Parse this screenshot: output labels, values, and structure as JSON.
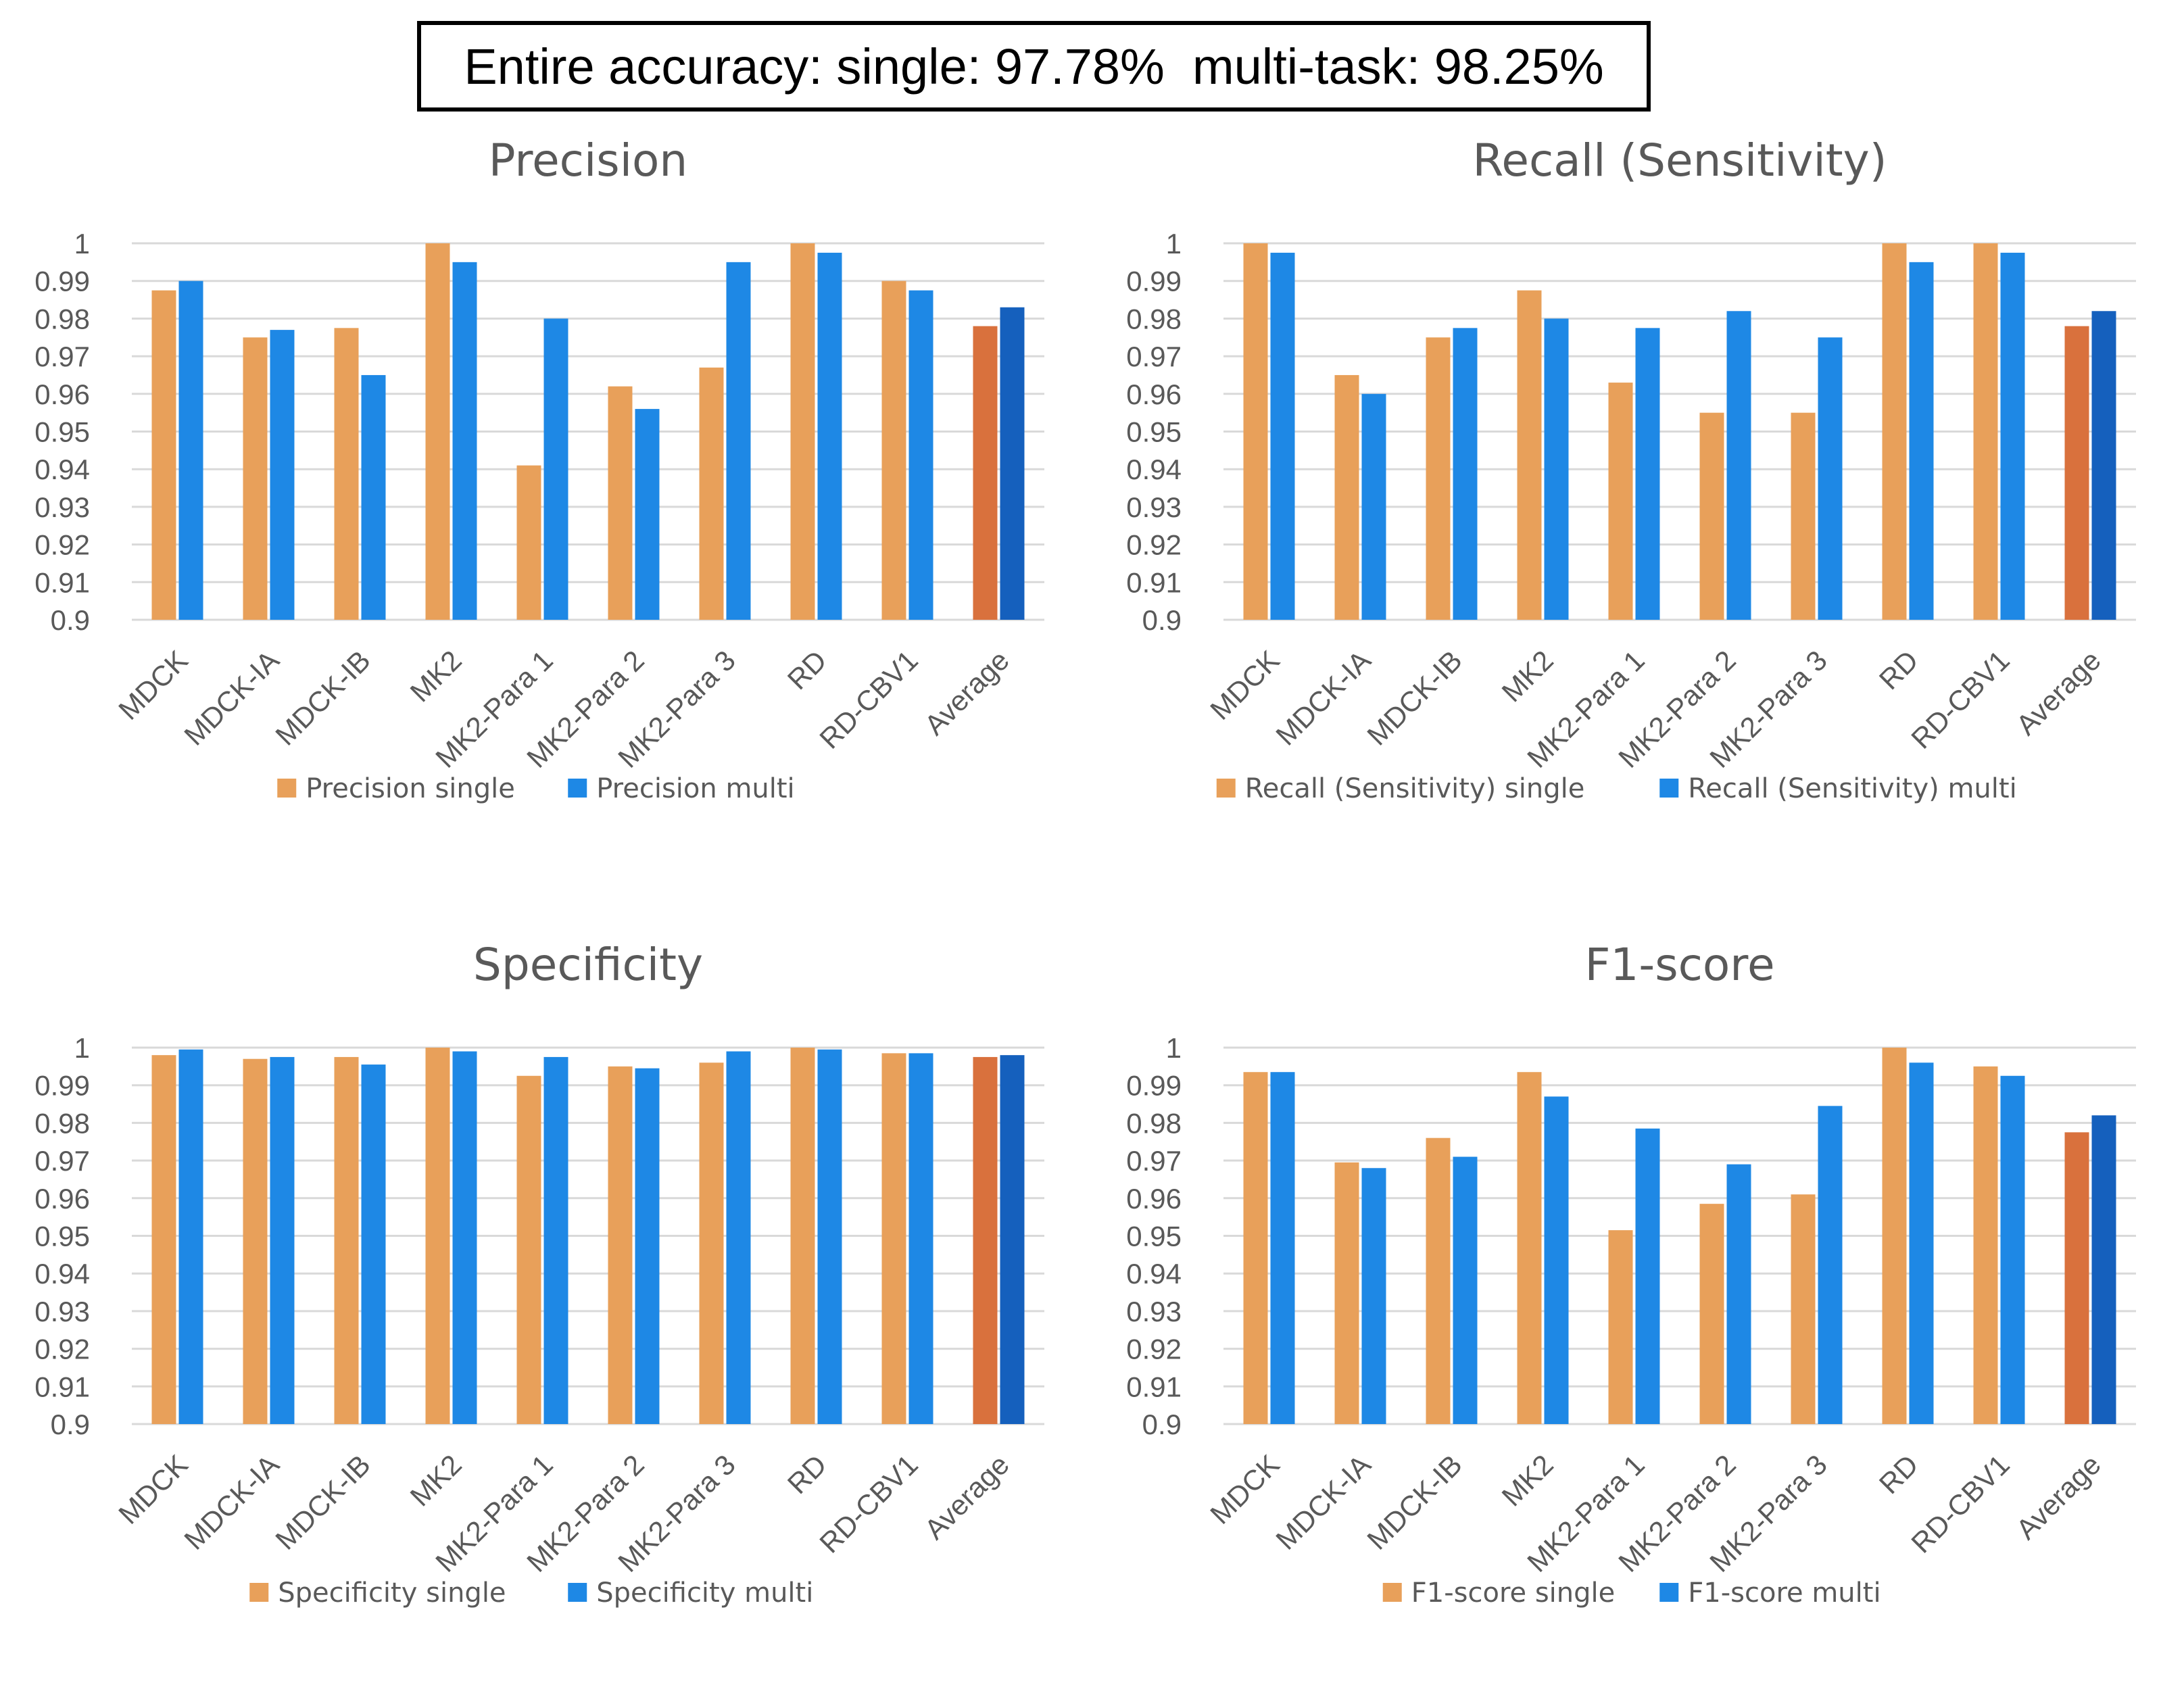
{
  "header": {
    "text": "Entire accuracy: single: 97.78%  multi-task: 98.25%"
  },
  "colors": {
    "single": "#E8A05A",
    "multi": "#1E88E5",
    "single_avg": "#D9713D",
    "multi_avg": "#1560BD",
    "axis_text": "#595959",
    "grid": "#D9D9D9"
  },
  "chart_data": [
    {
      "id": "precision",
      "type": "bar",
      "title": "Precision",
      "categories": [
        "MDCK",
        "MDCK-IA",
        "MDCK-IB",
        "MK2",
        "MK2-Para 1",
        "MK2-Para 2",
        "MK2-Para 3",
        "RD",
        "RD-CBV1",
        "Average"
      ],
      "series": [
        {
          "name": "Precision single",
          "values": [
            0.9875,
            0.975,
            0.9775,
            1.0,
            0.941,
            0.962,
            0.967,
            1.0,
            0.99,
            0.978
          ]
        },
        {
          "name": "Precision multi",
          "values": [
            0.99,
            0.977,
            0.965,
            0.995,
            0.98,
            0.956,
            0.995,
            0.9975,
            0.9875,
            0.983
          ]
        }
      ],
      "ylim": [
        0.9,
        1.0
      ],
      "yticks": [
        "1",
        "0.99",
        "0.98",
        "0.97",
        "0.96",
        "0.95",
        "0.94",
        "0.93",
        "0.92",
        "0.91",
        "0.9"
      ],
      "legend": "bottom"
    },
    {
      "id": "recall",
      "type": "bar",
      "title": "Recall (Sensitivity)",
      "categories": [
        "MDCK",
        "MDCK-IA",
        "MDCK-IB",
        "MK2",
        "MK2-Para 1",
        "MK2-Para 2",
        "MK2-Para 3",
        "RD",
        "RD-CBV1",
        "Average"
      ],
      "series": [
        {
          "name": "Recall (Sensitivity) single",
          "values": [
            1.0,
            0.965,
            0.975,
            0.9875,
            0.963,
            0.955,
            0.955,
            1.0,
            1.0,
            0.978
          ]
        },
        {
          "name": "Recall (Sensitivity) multi",
          "values": [
            0.9975,
            0.96,
            0.9775,
            0.98,
            0.9775,
            0.982,
            0.975,
            0.995,
            0.9975,
            0.982
          ]
        }
      ],
      "ylim": [
        0.9,
        1.0
      ],
      "yticks": [
        "1",
        "0.99",
        "0.98",
        "0.97",
        "0.96",
        "0.95",
        "0.94",
        "0.93",
        "0.92",
        "0.91",
        "0.9"
      ],
      "legend": "bottom"
    },
    {
      "id": "specificity",
      "type": "bar",
      "title": "Specificity",
      "categories": [
        "MDCK",
        "MDCK-IA",
        "MDCK-IB",
        "MK2",
        "MK2-Para 1",
        "MK2-Para 2",
        "MK2-Para 3",
        "RD",
        "RD-CBV1",
        "Average"
      ],
      "series": [
        {
          "name": "Specificity single",
          "values": [
            0.998,
            0.997,
            0.9975,
            1.0,
            0.9925,
            0.995,
            0.996,
            1.0,
            0.9985,
            0.9975
          ]
        },
        {
          "name": "Specificity multi",
          "values": [
            0.9995,
            0.9975,
            0.9955,
            0.999,
            0.9975,
            0.9945,
            0.999,
            0.9995,
            0.9985,
            0.998
          ]
        }
      ],
      "ylim": [
        0.9,
        1.0
      ],
      "yticks": [
        "1",
        "0.99",
        "0.98",
        "0.97",
        "0.96",
        "0.95",
        "0.94",
        "0.93",
        "0.92",
        "0.91",
        "0.9"
      ],
      "legend": "bottom"
    },
    {
      "id": "f1",
      "type": "bar",
      "title": "F1-score",
      "categories": [
        "MDCK",
        "MDCK-IA",
        "MDCK-IB",
        "MK2",
        "MK2-Para 1",
        "MK2-Para 2",
        "MK2-Para 3",
        "RD",
        "RD-CBV1",
        "Average"
      ],
      "series": [
        {
          "name": "F1-score single",
          "values": [
            0.9935,
            0.9695,
            0.976,
            0.9935,
            0.9515,
            0.9585,
            0.961,
            1.0,
            0.995,
            0.9775
          ]
        },
        {
          "name": "F1-score multi",
          "values": [
            0.9935,
            0.968,
            0.971,
            0.987,
            0.9785,
            0.969,
            0.9845,
            0.996,
            0.9925,
            0.982
          ]
        }
      ],
      "ylim": [
        0.9,
        1.0
      ],
      "yticks": [
        "1",
        "0.99",
        "0.98",
        "0.97",
        "0.96",
        "0.95",
        "0.94",
        "0.93",
        "0.92",
        "0.91",
        "0.9"
      ],
      "legend": "bottom"
    }
  ]
}
